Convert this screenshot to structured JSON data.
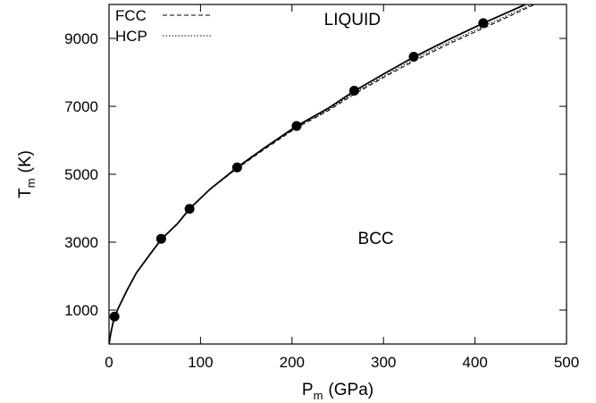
{
  "chart_data": {
    "type": "line",
    "xlabel": {
      "main": "P",
      "sub": "m",
      "unit": "(GPa)"
    },
    "ylabel": {
      "main": "T",
      "sub": "m",
      "unit": "(K)"
    },
    "xlim": [
      0,
      500
    ],
    "ylim": [
      0,
      10000
    ],
    "x_ticks": [
      0,
      100,
      200,
      300,
      400,
      500
    ],
    "x_tick_labels": [
      "0",
      "100",
      "200",
      "300",
      "400",
      "500"
    ],
    "y_ticks": [
      1000,
      3000,
      5000,
      7000,
      9000
    ],
    "y_tick_labels": [
      "1000",
      "3000",
      "5000",
      "7000",
      "9000"
    ],
    "grid": false,
    "legend_position": "top-left",
    "region_labels": [
      {
        "text": "LIQUID",
        "x": 235,
        "y": 9400
      },
      {
        "text": "BCC",
        "x": 272,
        "y": 2950
      }
    ],
    "series": [
      {
        "style": "solid",
        "x": [
          0,
          2,
          5,
          10,
          20,
          30,
          45,
          57,
          75,
          88,
          110,
          140,
          170,
          205,
          240,
          268,
          300,
          333,
          370,
          409,
          430,
          455
        ],
        "y": [
          0,
          330,
          700,
          1050,
          1600,
          2100,
          2650,
          3080,
          3550,
          3980,
          4550,
          5200,
          5780,
          6420,
          6950,
          7450,
          7950,
          8450,
          8950,
          9450,
          9700,
          10000
        ]
      },
      {
        "name": "FCC",
        "style": "dashed",
        "x": [
          0,
          2,
          5,
          10,
          20,
          30,
          45,
          57,
          75,
          88,
          110,
          140,
          170,
          205,
          240,
          268,
          300,
          333,
          370,
          409,
          430,
          465
        ],
        "y": [
          0,
          330,
          700,
          1050,
          1600,
          2100,
          2650,
          3080,
          3550,
          3980,
          4550,
          5170,
          5740,
          6370,
          6880,
          7360,
          7850,
          8330,
          8820,
          9300,
          9560,
          10000
        ]
      },
      {
        "name": "HCP",
        "style": "dotted",
        "x": [
          0,
          2,
          5,
          10,
          20,
          30,
          45,
          57,
          75,
          88,
          110,
          140,
          170,
          205,
          240,
          268,
          300,
          333,
          370,
          409,
          430,
          462
        ],
        "y": [
          0,
          330,
          700,
          1050,
          1600,
          2100,
          2650,
          3080,
          3550,
          3980,
          4550,
          5180,
          5760,
          6390,
          6910,
          7400,
          7890,
          8380,
          8870,
          9350,
          9610,
          10000
        ]
      }
    ],
    "points": {
      "x": [
        6,
        57,
        88,
        140,
        205,
        268,
        333,
        409
      ],
      "y": [
        810,
        3100,
        3980,
        5200,
        6420,
        7460,
        8460,
        9450
      ]
    }
  }
}
